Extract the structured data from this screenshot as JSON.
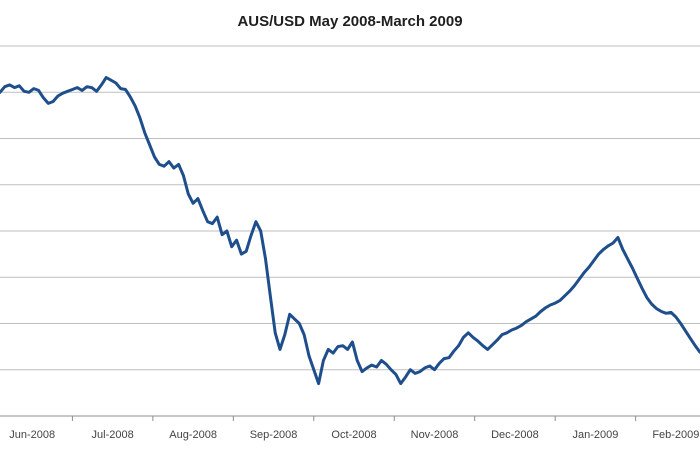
{
  "chart_data": {
    "type": "line",
    "title": "AUS/USD May 2008-March 2009",
    "xlabel": "",
    "ylabel": "",
    "x_tick_labels": [
      "Jun-2008",
      "Jul-2008",
      "Aug-2008",
      "Sep-2008",
      "Oct-2008",
      "Nov-2008",
      "Dec-2008",
      "Jan-2009",
      "Feb-2009"
    ],
    "x_tick_positions": [
      1,
      2,
      3,
      4,
      5,
      6,
      7,
      8,
      9
    ],
    "xlim": [
      0.6,
      9.3
    ],
    "ylim": [
      0.6,
      1.0
    ],
    "y_gridlines": [
      0.6,
      0.65,
      0.7,
      0.75,
      0.8,
      0.85,
      0.9,
      0.95,
      1.0
    ],
    "grid": true,
    "legend": "none",
    "line_color": "#1f4e8c",
    "series": [
      {
        "x": [
          0.6,
          0.66,
          0.72,
          0.78,
          0.84,
          0.9,
          0.96,
          1.02,
          1.08,
          1.14,
          1.2,
          1.26,
          1.32,
          1.38,
          1.44,
          1.5,
          1.56,
          1.62,
          1.68,
          1.74,
          1.8,
          1.86,
          1.92,
          1.98,
          2.04,
          2.1,
          2.16,
          2.22,
          2.28,
          2.34,
          2.4,
          2.46,
          2.52,
          2.58,
          2.64,
          2.7,
          2.76,
          2.82,
          2.88,
          2.94,
          3.0,
          3.06,
          3.12,
          3.18,
          3.24,
          3.3,
          3.36,
          3.42,
          3.48,
          3.54,
          3.6,
          3.66,
          3.72,
          3.78,
          3.84,
          3.9,
          3.96,
          4.02,
          4.08,
          4.14,
          4.2,
          4.26,
          4.32,
          4.38,
          4.44,
          4.5,
          4.56,
          4.62,
          4.68,
          4.74,
          4.8,
          4.86,
          4.92,
          4.98,
          5.04,
          5.1,
          5.16,
          5.22,
          5.28,
          5.34,
          5.4,
          5.46,
          5.52,
          5.58,
          5.64,
          5.7,
          5.76,
          5.82,
          5.88,
          5.94,
          6.0,
          6.06,
          6.12,
          6.18,
          6.24,
          6.3,
          6.36,
          6.42,
          6.48,
          6.54,
          6.6,
          6.66,
          6.72,
          6.78,
          6.84,
          6.9,
          6.96,
          7.02,
          7.08,
          7.14,
          7.2,
          7.26,
          7.32,
          7.38,
          7.44,
          7.5,
          7.56,
          7.62,
          7.68,
          7.74,
          7.8,
          7.86,
          7.92,
          7.98,
          8.04,
          8.1,
          8.16,
          8.22,
          8.28,
          8.34,
          8.4,
          8.46,
          8.52,
          8.58,
          8.64,
          8.7,
          8.76,
          8.82,
          8.88,
          8.94,
          9.0,
          9.06,
          9.12,
          9.18,
          9.24,
          9.3
        ],
        "values": [
          0.95,
          0.956,
          0.958,
          0.955,
          0.957,
          0.951,
          0.95,
          0.954,
          0.952,
          0.944,
          0.938,
          0.94,
          0.946,
          0.949,
          0.951,
          0.953,
          0.955,
          0.952,
          0.956,
          0.955,
          0.951,
          0.958,
          0.966,
          0.963,
          0.96,
          0.954,
          0.953,
          0.945,
          0.935,
          0.922,
          0.906,
          0.893,
          0.88,
          0.872,
          0.87,
          0.875,
          0.868,
          0.872,
          0.86,
          0.84,
          0.83,
          0.835,
          0.822,
          0.81,
          0.808,
          0.815,
          0.796,
          0.8,
          0.783,
          0.79,
          0.775,
          0.778,
          0.795,
          0.81,
          0.8,
          0.77,
          0.73,
          0.69,
          0.672,
          0.688,
          0.71,
          0.705,
          0.7,
          0.688,
          0.665,
          0.65,
          0.635,
          0.66,
          0.672,
          0.668,
          0.675,
          0.676,
          0.672,
          0.68,
          0.66,
          0.648,
          0.652,
          0.655,
          0.653,
          0.66,
          0.656,
          0.65,
          0.645,
          0.635,
          0.642,
          0.65,
          0.646,
          0.648,
          0.652,
          0.654,
          0.65,
          0.657,
          0.662,
          0.663,
          0.67,
          0.676,
          0.685,
          0.69,
          0.685,
          0.681,
          0.676,
          0.672,
          0.677,
          0.682,
          0.688,
          0.69,
          0.693,
          0.695,
          0.698,
          0.702,
          0.705,
          0.708,
          0.713,
          0.717,
          0.72,
          0.722,
          0.725,
          0.73,
          0.735,
          0.741,
          0.748,
          0.755,
          0.761,
          0.768,
          0.775,
          0.78,
          0.784,
          0.787,
          0.793,
          0.78,
          0.77,
          0.76,
          0.749,
          0.738,
          0.728,
          0.721,
          0.716,
          0.713,
          0.711,
          0.712,
          0.707,
          0.7,
          0.692,
          0.684,
          0.676,
          0.669
        ]
      }
    ]
  }
}
